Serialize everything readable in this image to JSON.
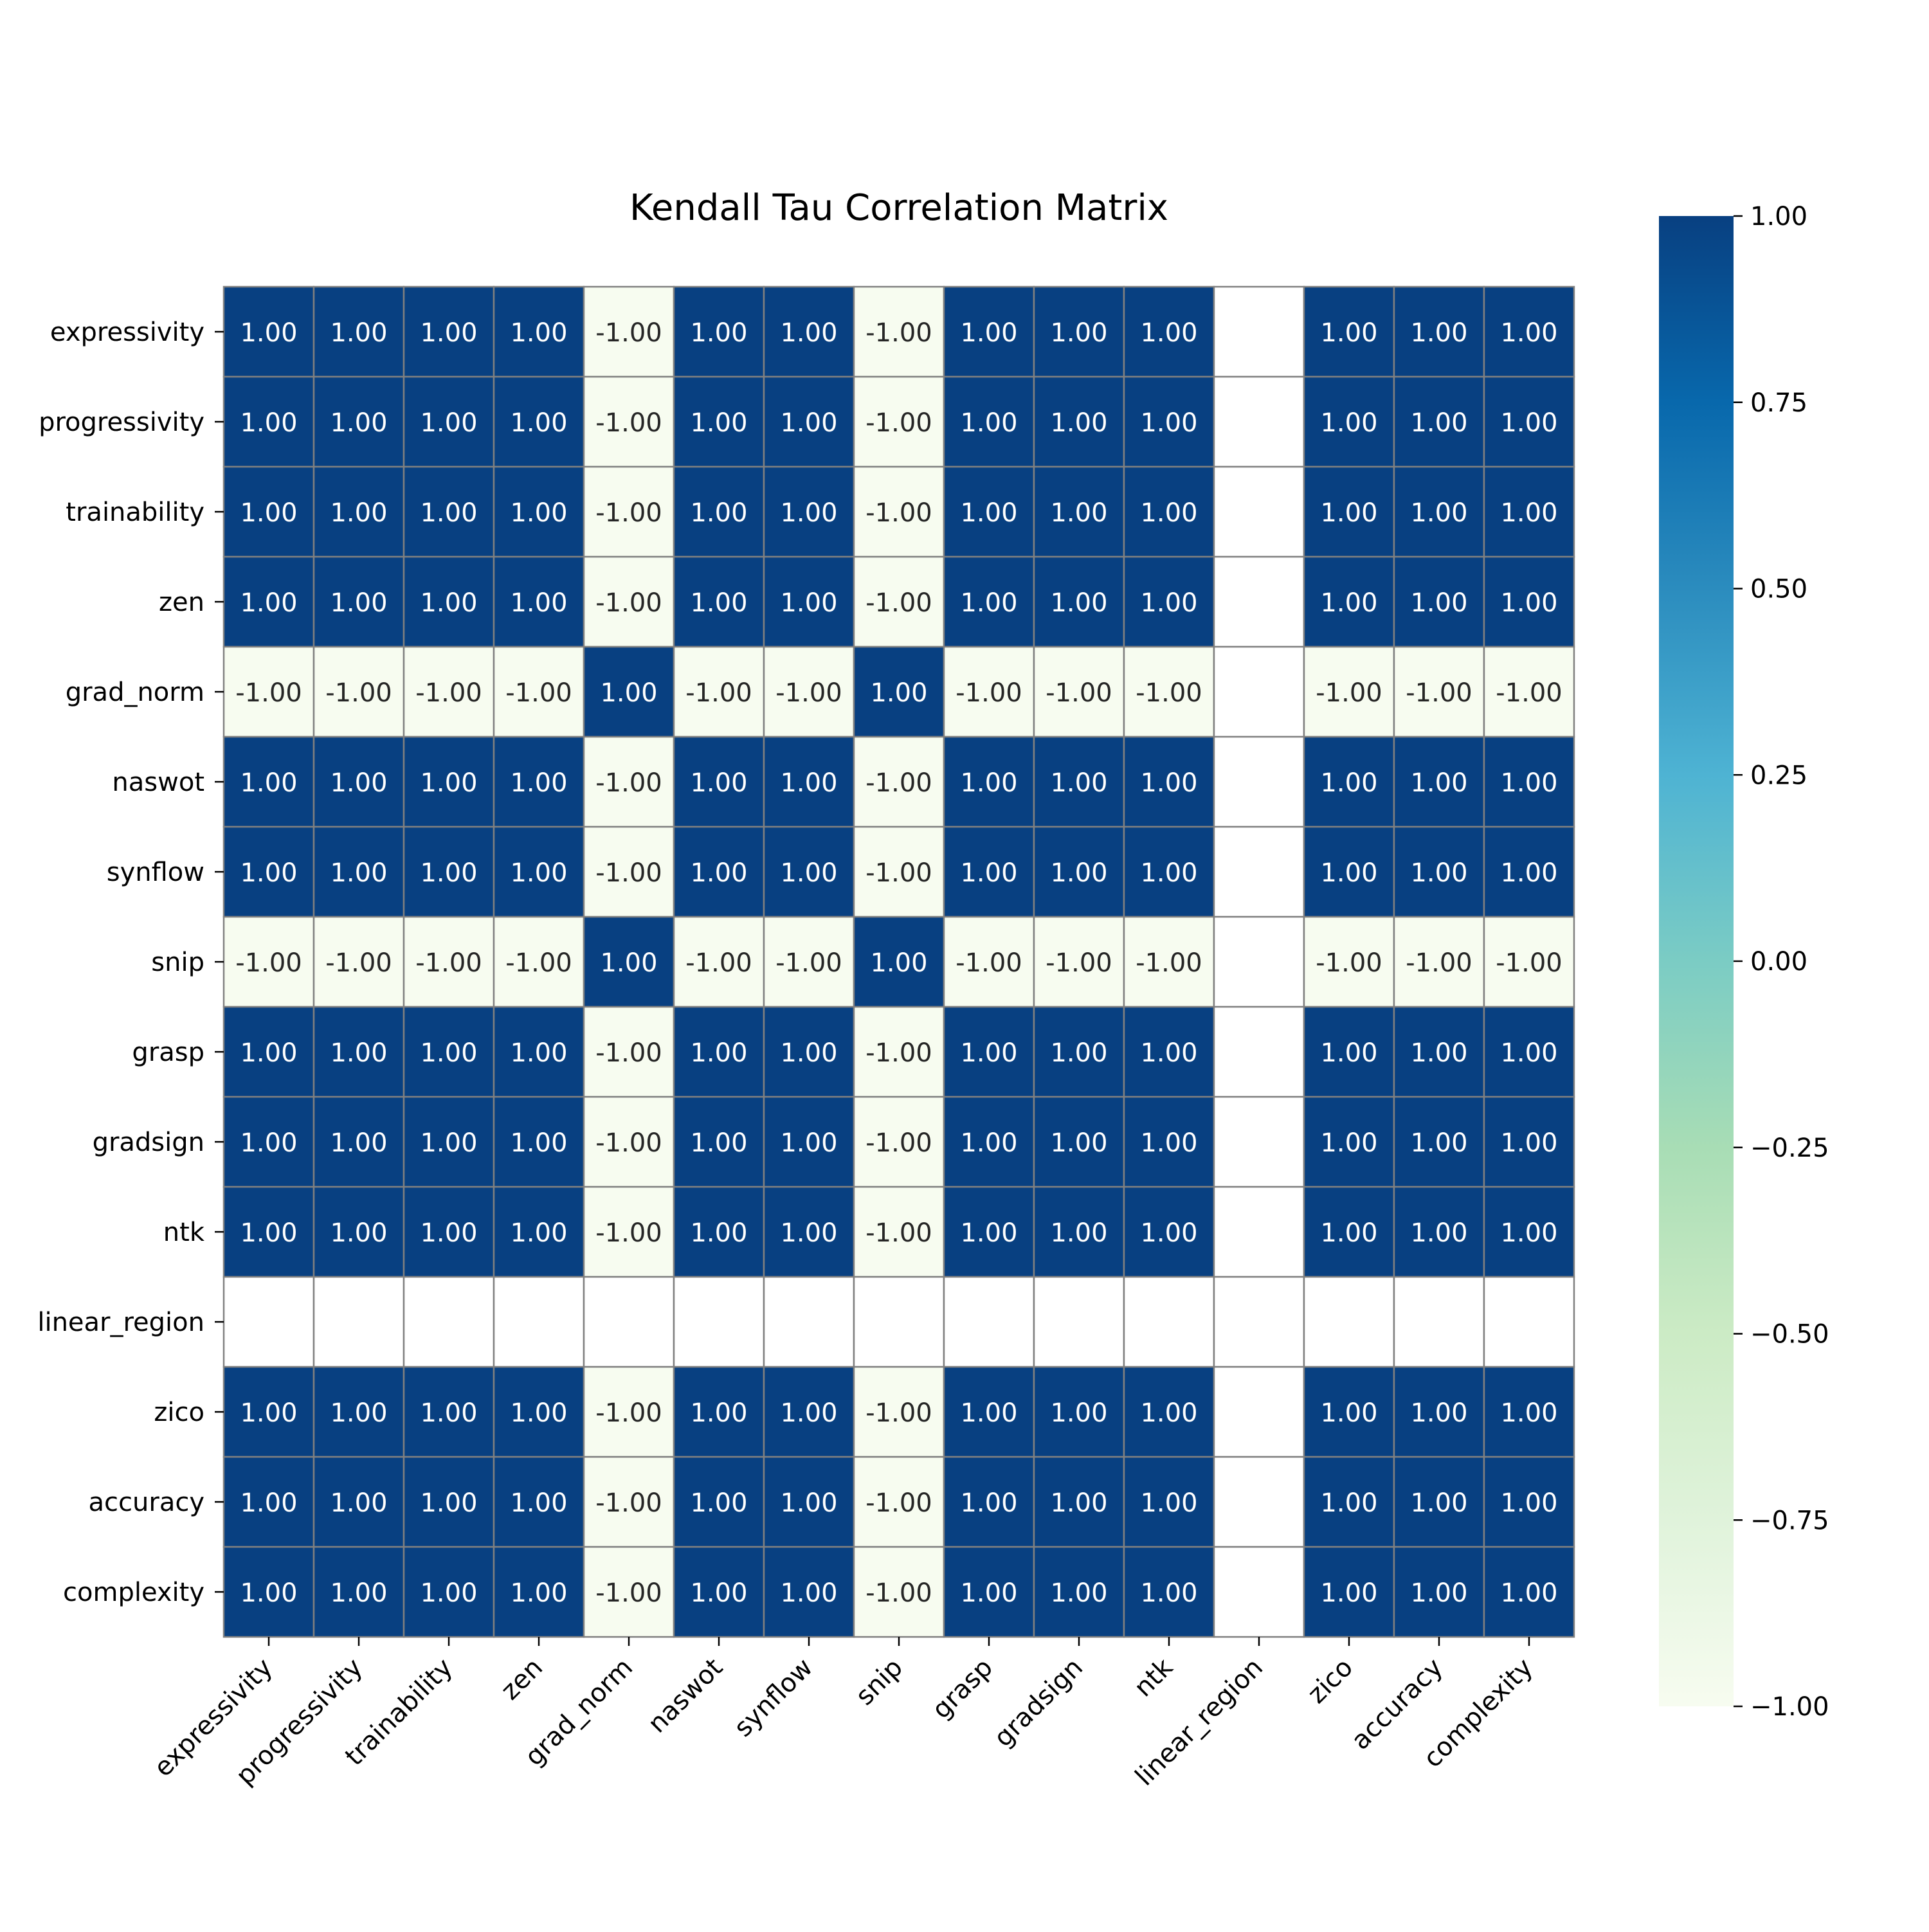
{
  "chart_data": {
    "type": "heatmap",
    "title": "Kendall Tau Correlation Matrix",
    "labels": [
      "expressivity",
      "progressivity",
      "trainability",
      "zen",
      "grad_norm",
      "naswot",
      "synflow",
      "snip",
      "grasp",
      "gradsign",
      "ntk",
      "linear_region",
      "zico",
      "accuracy",
      "complexity"
    ],
    "values": [
      [
        1,
        1,
        1,
        1,
        -1,
        1,
        1,
        -1,
        1,
        1,
        1,
        null,
        1,
        1,
        1
      ],
      [
        1,
        1,
        1,
        1,
        -1,
        1,
        1,
        -1,
        1,
        1,
        1,
        null,
        1,
        1,
        1
      ],
      [
        1,
        1,
        1,
        1,
        -1,
        1,
        1,
        -1,
        1,
        1,
        1,
        null,
        1,
        1,
        1
      ],
      [
        1,
        1,
        1,
        1,
        -1,
        1,
        1,
        -1,
        1,
        1,
        1,
        null,
        1,
        1,
        1
      ],
      [
        -1,
        -1,
        -1,
        -1,
        1,
        -1,
        -1,
        1,
        -1,
        -1,
        -1,
        null,
        -1,
        -1,
        -1
      ],
      [
        1,
        1,
        1,
        1,
        -1,
        1,
        1,
        -1,
        1,
        1,
        1,
        null,
        1,
        1,
        1
      ],
      [
        1,
        1,
        1,
        1,
        -1,
        1,
        1,
        -1,
        1,
        1,
        1,
        null,
        1,
        1,
        1
      ],
      [
        -1,
        -1,
        -1,
        -1,
        1,
        -1,
        -1,
        1,
        -1,
        -1,
        -1,
        null,
        -1,
        -1,
        -1
      ],
      [
        1,
        1,
        1,
        1,
        -1,
        1,
        1,
        -1,
        1,
        1,
        1,
        null,
        1,
        1,
        1
      ],
      [
        1,
        1,
        1,
        1,
        -1,
        1,
        1,
        -1,
        1,
        1,
        1,
        null,
        1,
        1,
        1
      ],
      [
        1,
        1,
        1,
        1,
        -1,
        1,
        1,
        -1,
        1,
        1,
        1,
        null,
        1,
        1,
        1
      ],
      [
        null,
        null,
        null,
        null,
        null,
        null,
        null,
        null,
        null,
        null,
        null,
        null,
        null,
        null,
        null
      ],
      [
        1,
        1,
        1,
        1,
        -1,
        1,
        1,
        -1,
        1,
        1,
        1,
        null,
        1,
        1,
        1
      ],
      [
        1,
        1,
        1,
        1,
        -1,
        1,
        1,
        -1,
        1,
        1,
        1,
        null,
        1,
        1,
        1
      ],
      [
        1,
        1,
        1,
        1,
        -1,
        1,
        1,
        -1,
        1,
        1,
        1,
        null,
        1,
        1,
        1
      ]
    ],
    "value_format": "0.00",
    "colormap": "GnBu",
    "color_min": "#f7fcf0",
    "color_max": "#084081",
    "vmin": -1,
    "vmax": 1,
    "colorbar": {
      "ticks": [
        1.0,
        0.75,
        0.5,
        0.25,
        0.0,
        -0.25,
        -0.5,
        -0.75,
        -1.0
      ],
      "tick_labels": [
        "1.00",
        "0.75",
        "0.50",
        "0.25",
        "0.00",
        "−0.25",
        "−0.50",
        "−0.75",
        "−1.00"
      ]
    },
    "grid": true,
    "xtick_rotation": 45
  }
}
